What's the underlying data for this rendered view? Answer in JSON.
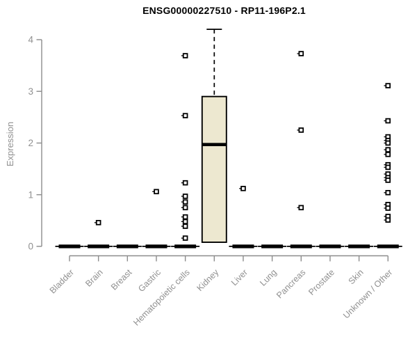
{
  "chart_data": {
    "type": "boxplot",
    "title": "ENSG00000227510 - RP11-196P2.1",
    "xlabel": "",
    "ylabel": "Expression",
    "ylim": [
      0,
      4.35
    ],
    "yticks": [
      0,
      1,
      2,
      3,
      4
    ],
    "grid": false,
    "legend": null,
    "categories": [
      "Bladder",
      "Brain",
      "Breast",
      "Gastric",
      "Hematopoietic cells",
      "Kidney",
      "Liver",
      "Lung",
      "Pancreas",
      "Prostate",
      "Skin",
      "Unknown / Other"
    ],
    "boxes": [
      {
        "category": "Bladder",
        "median": 0,
        "q1": 0,
        "q3": 0,
        "whisker_low": 0,
        "whisker_high": 0,
        "outliers": []
      },
      {
        "category": "Brain",
        "median": 0,
        "q1": 0,
        "q3": 0,
        "whisker_low": 0,
        "whisker_high": 0,
        "outliers": [
          0.46
        ]
      },
      {
        "category": "Breast",
        "median": 0,
        "q1": 0,
        "q3": 0,
        "whisker_low": 0,
        "whisker_high": 0,
        "outliers": []
      },
      {
        "category": "Gastric",
        "median": 0,
        "q1": 0,
        "q3": 0,
        "whisker_low": 0,
        "whisker_high": 0,
        "outliers": [
          1.06
        ]
      },
      {
        "category": "Hematopoietic cells",
        "median": 0,
        "q1": 0,
        "q3": 0,
        "whisker_low": 0,
        "whisker_high": 0,
        "outliers": [
          3.69,
          2.53,
          1.23,
          0.97,
          0.86,
          0.75,
          0.57,
          0.48,
          0.39,
          0.16
        ]
      },
      {
        "category": "Kidney",
        "median": 1.97,
        "q1": 0.08,
        "q3": 2.9,
        "whisker_low": 0.08,
        "whisker_high": 4.2,
        "outliers": []
      },
      {
        "category": "Liver",
        "median": 0,
        "q1": 0,
        "q3": 0,
        "whisker_low": 0,
        "whisker_high": 0,
        "outliers": [
          1.12
        ]
      },
      {
        "category": "Lung",
        "median": 0,
        "q1": 0,
        "q3": 0,
        "whisker_low": 0,
        "whisker_high": 0,
        "outliers": []
      },
      {
        "category": "Pancreas",
        "median": 0,
        "q1": 0,
        "q3": 0,
        "whisker_low": 0,
        "whisker_high": 0,
        "outliers": [
          3.73,
          2.25,
          0.75
        ]
      },
      {
        "category": "Prostate",
        "median": 0,
        "q1": 0,
        "q3": 0,
        "whisker_low": 0,
        "whisker_high": 0,
        "outliers": []
      },
      {
        "category": "Skin",
        "median": 0,
        "q1": 0,
        "q3": 0,
        "whisker_low": 0,
        "whisker_high": 0,
        "outliers": []
      },
      {
        "category": "Unknown / Other",
        "median": 0,
        "q1": 0,
        "q3": 0,
        "whisker_low": 0,
        "whisker_high": 0,
        "outliers": [
          3.11,
          2.43,
          2.12,
          2.05,
          2.0,
          1.87,
          1.78,
          1.58,
          1.53,
          1.4,
          1.33,
          1.28,
          1.04,
          0.81,
          0.74,
          0.58,
          0.51
        ]
      }
    ],
    "colors": {
      "box_fill": "#EDE8D0",
      "box_border": "#000000",
      "axis_line": "#8C8C8C",
      "axis_text": "#909090",
      "title_text": "#000000",
      "background": "#FFFFFF"
    }
  }
}
